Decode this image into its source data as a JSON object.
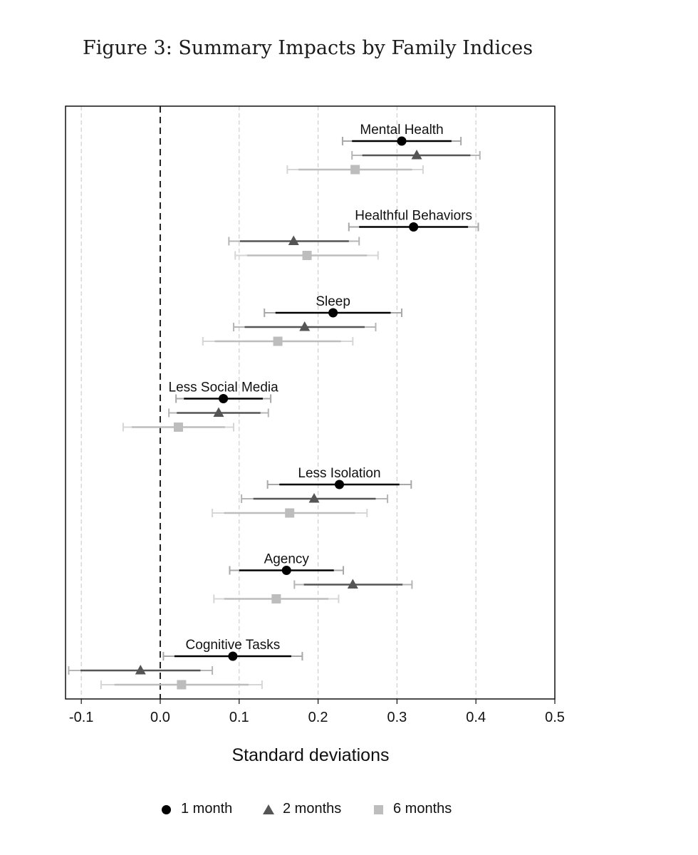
{
  "figure_title": "Figure 3: Summary Impacts by Family Indices",
  "chart_data": {
    "type": "scatter",
    "subtype": "coefficient-plot-with-confidence-intervals",
    "xlabel": "Standard deviations",
    "xlim": [
      -0.12,
      0.5
    ],
    "xticks": [
      -0.1,
      0.0,
      0.1,
      0.2,
      0.3,
      0.4,
      0.5
    ],
    "xtick_labels": [
      "-0.1",
      "0.0",
      "0.1",
      "0.2",
      "0.3",
      "0.4",
      "0.5"
    ],
    "reference_line": 0.0,
    "grid": "vertical dashed",
    "legend_position": "bottom",
    "series": [
      {
        "name": "1 month",
        "marker": "circle",
        "color": "#000000"
      },
      {
        "name": "2 months",
        "marker": "triangle",
        "color": "#555555"
      },
      {
        "name": "6 months",
        "marker": "square",
        "color": "#bdbdbd"
      }
    ],
    "groups": [
      {
        "label": "Mental Health",
        "estimates": [
          {
            "series": "1 month",
            "est": 0.306,
            "ci90": [
              0.243,
              0.369
            ],
            "ci95": [
              0.231,
              0.381
            ]
          },
          {
            "series": "2 months",
            "est": 0.325,
            "ci90": [
              0.256,
              0.393
            ],
            "ci95": [
              0.243,
              0.405
            ]
          },
          {
            "series": "6 months",
            "est": 0.247,
            "ci90": [
              0.175,
              0.319
            ],
            "ci95": [
              0.161,
              0.333
            ]
          }
        ]
      },
      {
        "label": "Healthful Behaviors",
        "estimates": [
          {
            "series": "1 month",
            "est": 0.321,
            "ci90": [
              0.252,
              0.39
            ],
            "ci95": [
              0.239,
              0.403
            ]
          },
          {
            "series": "2 months",
            "est": 0.169,
            "ci90": [
              0.101,
              0.239
            ],
            "ci95": [
              0.087,
              0.252
            ]
          },
          {
            "series": "6 months",
            "est": 0.186,
            "ci90": [
              0.11,
              0.262
            ],
            "ci95": [
              0.095,
              0.276
            ]
          }
        ]
      },
      {
        "label": "Sleep",
        "estimates": [
          {
            "series": "1 month",
            "est": 0.219,
            "ci90": [
              0.146,
              0.292
            ],
            "ci95": [
              0.132,
              0.306
            ]
          },
          {
            "series": "2 months",
            "est": 0.183,
            "ci90": [
              0.107,
              0.259
            ],
            "ci95": [
              0.093,
              0.273
            ]
          },
          {
            "series": "6 months",
            "est": 0.149,
            "ci90": [
              0.069,
              0.229
            ],
            "ci95": [
              0.054,
              0.244
            ]
          }
        ]
      },
      {
        "label": "Less Social Media",
        "estimates": [
          {
            "series": "1 month",
            "est": 0.08,
            "ci90": [
              0.03,
              0.13
            ],
            "ci95": [
              0.02,
              0.14
            ]
          },
          {
            "series": "2 months",
            "est": 0.074,
            "ci90": [
              0.021,
              0.127
            ],
            "ci95": [
              0.011,
              0.137
            ]
          },
          {
            "series": "6 months",
            "est": 0.023,
            "ci90": [
              -0.036,
              0.082
            ],
            "ci95": [
              -0.047,
              0.093
            ]
          }
        ]
      },
      {
        "label": "Less Isolation",
        "estimates": [
          {
            "series": "1 month",
            "est": 0.227,
            "ci90": [
              0.151,
              0.303
            ],
            "ci95": [
              0.136,
              0.318
            ]
          },
          {
            "series": "2 months",
            "est": 0.195,
            "ci90": [
              0.118,
              0.273
            ],
            "ci95": [
              0.103,
              0.288
            ]
          },
          {
            "series": "6 months",
            "est": 0.164,
            "ci90": [
              0.081,
              0.247
            ],
            "ci95": [
              0.066,
              0.262
            ]
          }
        ]
      },
      {
        "label": "Agency",
        "estimates": [
          {
            "series": "1 month",
            "est": 0.16,
            "ci90": [
              0.1,
              0.22
            ],
            "ci95": [
              0.088,
              0.232
            ]
          },
          {
            "series": "2 months",
            "est": 0.244,
            "ci90": [
              0.182,
              0.307
            ],
            "ci95": [
              0.17,
              0.319
            ]
          },
          {
            "series": "6 months",
            "est": 0.147,
            "ci90": [
              0.081,
              0.213
            ],
            "ci95": [
              0.068,
              0.226
            ]
          }
        ]
      },
      {
        "label": "Cognitive Tasks",
        "estimates": [
          {
            "series": "1 month",
            "est": 0.092,
            "ci90": [
              0.018,
              0.166
            ],
            "ci95": [
              0.004,
              0.18
            ]
          },
          {
            "series": "2 months",
            "est": -0.025,
            "ci90": [
              -0.101,
              0.051
            ],
            "ci95": [
              -0.116,
              0.066
            ]
          },
          {
            "series": "6 months",
            "est": 0.027,
            "ci90": [
              -0.058,
              0.112
            ],
            "ci95": [
              -0.075,
              0.129
            ]
          }
        ]
      }
    ]
  }
}
